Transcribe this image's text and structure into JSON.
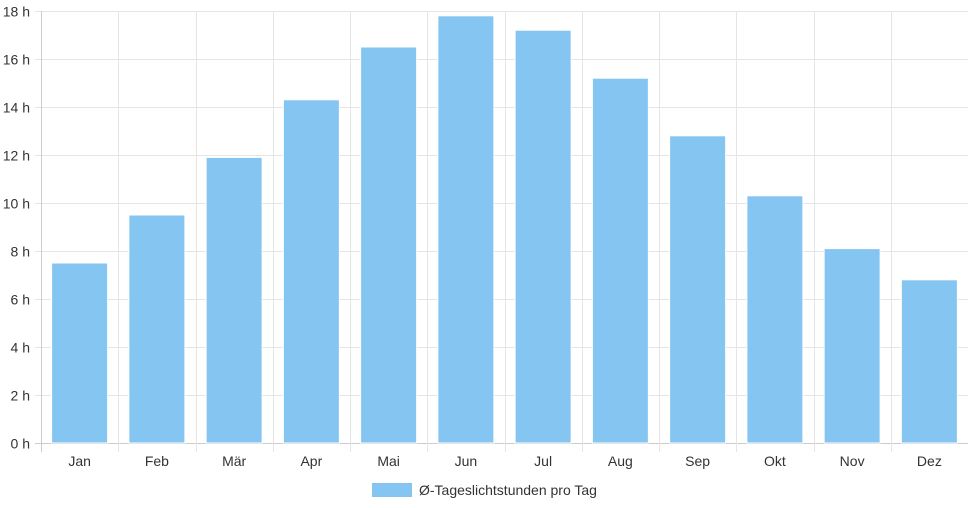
{
  "chart_data": {
    "type": "bar",
    "categories": [
      "Jan",
      "Feb",
      "Mär",
      "Apr",
      "Mai",
      "Jun",
      "Jul",
      "Aug",
      "Sep",
      "Okt",
      "Nov",
      "Dez"
    ],
    "series": [
      {
        "name": "Ø-Tageslichtstunden pro Tag",
        "values": [
          7.5,
          9.5,
          11.9,
          14.3,
          16.5,
          17.8,
          17.2,
          15.2,
          12.8,
          10.3,
          8.1,
          6.8
        ]
      }
    ],
    "ylim": [
      0,
      18
    ],
    "y_ticks": [
      "0 h",
      "2 h",
      "4 h",
      "6 h",
      "8 h",
      "10 h",
      "12 h",
      "14 h",
      "16 h",
      "18 h"
    ],
    "grid": true,
    "legend_position": "bottom",
    "colors": {
      "bar": "#85c5f2",
      "bar_edge": "#ffffff",
      "grid": "#e5e5e5",
      "axis": "#cccccc"
    }
  }
}
